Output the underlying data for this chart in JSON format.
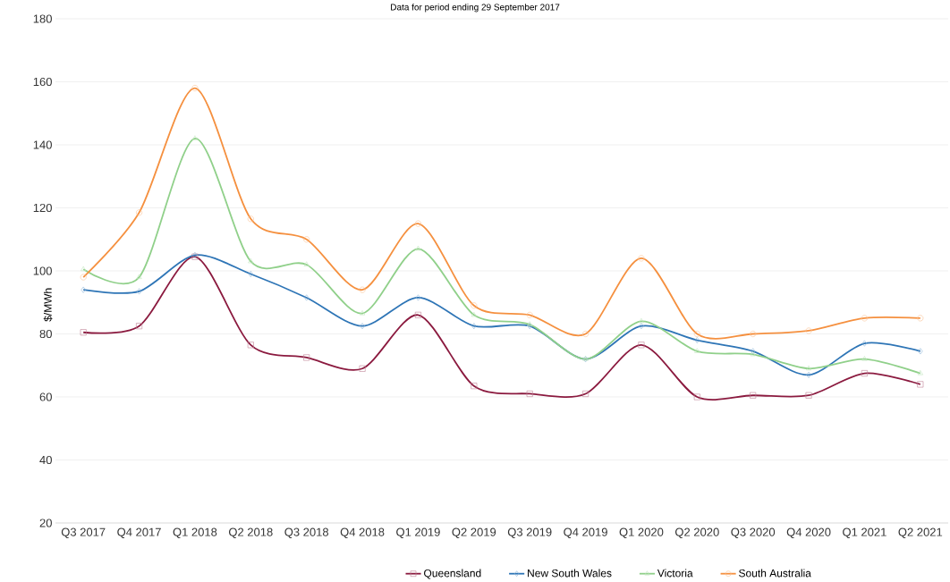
{
  "chart_data": {
    "type": "line",
    "title": "Data for period ending 29 September 2017",
    "ylabel": "$/MWh",
    "categories": [
      "Q3 2017",
      "Q4 2017",
      "Q1 2018",
      "Q2 2018",
      "Q3 2018",
      "Q4 2018",
      "Q1 2019",
      "Q2 2019",
      "Q3 2019",
      "Q4 2019",
      "Q1 2020",
      "Q2 2020",
      "Q3 2020",
      "Q4 2020",
      "Q1 2021",
      "Q2 2021"
    ],
    "series": [
      {
        "name": "Queensland",
        "color": "#8b1a3f",
        "marker": "square",
        "values": [
          80.5,
          82.5,
          104.5,
          76.5,
          72.5,
          69,
          86,
          63.5,
          61,
          61,
          76.5,
          60,
          60.5,
          60.5,
          67.5,
          64
        ]
      },
      {
        "name": "New South Wales",
        "color": "#2e75b6",
        "marker": "diamond",
        "values": [
          94,
          93.5,
          105,
          99,
          91.5,
          82.5,
          91.5,
          82.5,
          82.5,
          72,
          82.5,
          78,
          74.5,
          67,
          77,
          74.5
        ]
      },
      {
        "name": "Victoria",
        "color": "#90d08a",
        "marker": "triangle",
        "values": [
          100.5,
          98,
          142,
          103,
          102,
          86.5,
          107,
          86,
          83,
          72,
          84,
          74.5,
          73.5,
          69,
          72,
          67.5
        ]
      },
      {
        "name": "South Australia",
        "color": "#f5903f",
        "marker": "circle",
        "values": [
          98,
          118.5,
          158,
          116.5,
          110,
          94,
          115,
          89,
          86,
          80,
          104,
          80,
          80,
          81,
          85,
          85
        ]
      }
    ],
    "ylim": [
      20,
      180
    ],
    "yticks": [
      20,
      40,
      60,
      80,
      100,
      120,
      140,
      160,
      180
    ],
    "grid": "y",
    "legend": "bottom",
    "line_style": "solid"
  }
}
